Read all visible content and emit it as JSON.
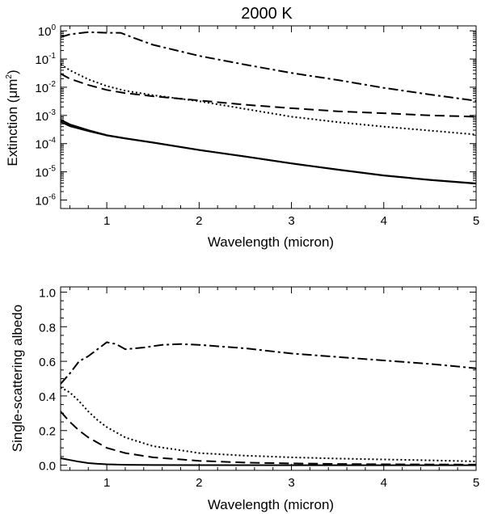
{
  "chart_data": [
    {
      "type": "line",
      "title": "2000 K",
      "xlabel": "Wavelength (micron)",
      "ylabel_main": "Extinction (μm",
      "ylabel_sup": "2",
      "ylabel_close": ")",
      "yscale": "log",
      "xlim": [
        0.5,
        5
      ],
      "ylim": [
        5e-07,
        1.5
      ],
      "xticks": [
        {
          "value": 1,
          "label": "1"
        },
        {
          "value": 2,
          "label": "2"
        },
        {
          "value": 3,
          "label": "3"
        },
        {
          "value": 4,
          "label": "4"
        },
        {
          "value": 5,
          "label": "5"
        }
      ],
      "yticks": [
        {
          "value": 1e-06,
          "base": "10",
          "exp": "-6"
        },
        {
          "value": 1e-05,
          "base": "10",
          "exp": "-5"
        },
        {
          "value": 0.0001,
          "base": "10",
          "exp": "-4"
        },
        {
          "value": 0.001,
          "base": "10",
          "exp": "-3"
        },
        {
          "value": 0.01,
          "base": "10",
          "exp": "-2"
        },
        {
          "value": 0.1,
          "base": "10",
          "exp": "-1"
        },
        {
          "value": 1,
          "base": "10",
          "exp": "0"
        }
      ],
      "series": [
        {
          "name": "dash-dot",
          "dash": "12,4,3,4",
          "x": [
            0.5,
            0.6,
            0.8,
            1.0,
            1.15,
            1.3,
            1.5,
            2.0,
            2.5,
            3.0,
            3.5,
            4.0,
            4.5,
            5.0
          ],
          "y": [
            0.6,
            0.75,
            0.9,
            0.85,
            0.85,
            0.55,
            0.32,
            0.13,
            0.063,
            0.032,
            0.018,
            0.0095,
            0.0055,
            0.0033
          ]
        },
        {
          "name": "dotted",
          "dash": "2,3",
          "x": [
            0.5,
            0.6,
            0.8,
            1.0,
            1.2,
            1.5,
            2.0,
            2.5,
            3.0,
            3.5,
            4.0,
            4.5,
            5.0
          ],
          "y": [
            0.065,
            0.04,
            0.019,
            0.011,
            0.0075,
            0.0052,
            0.0032,
            0.0017,
            0.0009,
            0.00058,
            0.0004,
            0.00029,
            0.00021
          ]
        },
        {
          "name": "dashed",
          "dash": "12,6",
          "x": [
            0.5,
            0.6,
            0.8,
            1.0,
            1.2,
            1.5,
            2.0,
            2.5,
            3.0,
            3.5,
            4.0,
            4.5,
            5.0
          ],
          "y": [
            0.03,
            0.02,
            0.012,
            0.008,
            0.0062,
            0.0048,
            0.0034,
            0.0024,
            0.0018,
            0.0014,
            0.0012,
            0.001,
            0.0009
          ]
        },
        {
          "name": "solid-a",
          "dash": "",
          "x": [
            0.5,
            0.6,
            0.8,
            1.0,
            1.2,
            1.5,
            2.0,
            2.5,
            3.0,
            3.5,
            4.0,
            4.5,
            5.0
          ],
          "y": [
            0.0007,
            0.00048,
            0.0003,
            0.0002,
            0.000155,
            0.00011,
            6e-05,
            3.5e-05,
            2e-05,
            1.2e-05,
            7.5e-06,
            5.2e-06,
            3.9e-06
          ]
        },
        {
          "name": "solid-b",
          "dash": "",
          "x": [
            0.5,
            0.6,
            0.8,
            1.0,
            1.2,
            1.5,
            2.0,
            2.5,
            3.0,
            3.5,
            4.0,
            4.5,
            5.0
          ],
          "y": [
            0.0006,
            0.00042,
            0.00028,
            0.000195,
            0.000152,
            0.000108,
            5.9e-05,
            3.45e-05,
            1.98e-05,
            1.19e-05,
            7.4e-06,
            5.1e-06,
            3.8e-06
          ]
        }
      ]
    },
    {
      "type": "line",
      "title": "",
      "xlabel": "Wavelength (micron)",
      "ylabel": "Single-scattering albedo",
      "yscale": "linear",
      "xlim": [
        0.5,
        5
      ],
      "ylim": [
        -0.03,
        1.03
      ],
      "xticks": [
        {
          "value": 1,
          "label": "1"
        },
        {
          "value": 2,
          "label": "2"
        },
        {
          "value": 3,
          "label": "3"
        },
        {
          "value": 4,
          "label": "4"
        },
        {
          "value": 5,
          "label": "5"
        }
      ],
      "yticks": [
        {
          "value": 0.0,
          "label": "0.0"
        },
        {
          "value": 0.2,
          "label": "0.2"
        },
        {
          "value": 0.4,
          "label": "0.4"
        },
        {
          "value": 0.6,
          "label": "0.6"
        },
        {
          "value": 0.8,
          "label": "0.8"
        },
        {
          "value": 1.0,
          "label": "1.0"
        }
      ],
      "series": [
        {
          "name": "dash-dot",
          "dash": "12,4,3,4",
          "x": [
            0.5,
            0.6,
            0.7,
            0.8,
            0.9,
            1.0,
            1.1,
            1.2,
            1.4,
            1.6,
            1.8,
            2.0,
            2.5,
            3.0,
            3.5,
            4.0,
            4.5,
            5.0
          ],
          "y": [
            0.47,
            0.53,
            0.6,
            0.63,
            0.67,
            0.71,
            0.7,
            0.67,
            0.68,
            0.695,
            0.7,
            0.695,
            0.675,
            0.645,
            0.625,
            0.605,
            0.585,
            0.56
          ]
        },
        {
          "name": "dotted",
          "dash": "2,3",
          "x": [
            0.5,
            0.6,
            0.7,
            0.8,
            0.9,
            1.0,
            1.2,
            1.5,
            2.0,
            2.5,
            3.0,
            3.5,
            4.0,
            4.5,
            5.0
          ],
          "y": [
            0.45,
            0.42,
            0.37,
            0.31,
            0.26,
            0.22,
            0.16,
            0.11,
            0.07,
            0.055,
            0.045,
            0.038,
            0.033,
            0.028,
            0.022
          ]
        },
        {
          "name": "dashed",
          "dash": "12,6",
          "x": [
            0.5,
            0.6,
            0.7,
            0.8,
            0.9,
            1.0,
            1.2,
            1.5,
            2.0,
            2.5,
            3.0,
            3.5,
            4.0,
            4.5,
            5.0
          ],
          "y": [
            0.31,
            0.25,
            0.2,
            0.16,
            0.13,
            0.1,
            0.07,
            0.045,
            0.025,
            0.015,
            0.01,
            0.007,
            0.005,
            0.004,
            0.003
          ]
        },
        {
          "name": "solid",
          "dash": "",
          "x": [
            0.5,
            0.6,
            0.7,
            0.8,
            0.9,
            1.0,
            1.2,
            1.5,
            2.0,
            3.0,
            4.0,
            5.0
          ],
          "y": [
            0.04,
            0.03,
            0.02,
            0.012,
            0.008,
            0.005,
            0.002,
            0.0008,
            0.0003,
            0.0001,
            0.0,
            0.0
          ]
        }
      ]
    }
  ]
}
